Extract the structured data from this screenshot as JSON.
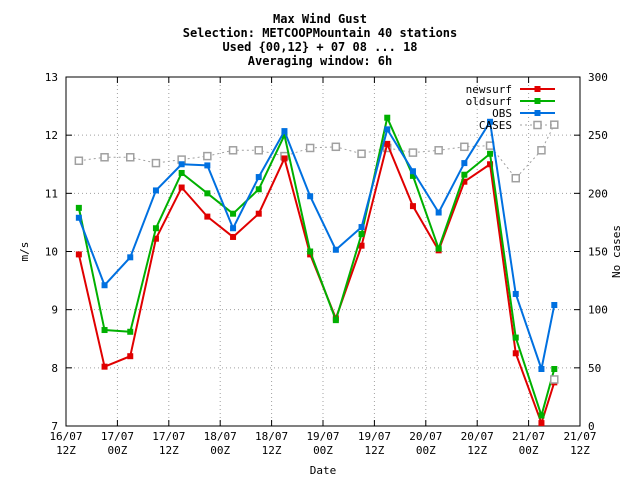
{
  "chart_data": {
    "type": "line",
    "title_lines": [
      "Max Wind Gust",
      "Selection: METCOOPMountain     40 stations",
      "Used {00,12} + 07 08 ... 18",
      "Averaging window:  6h"
    ],
    "xlabel": "Date",
    "ylabel": "m/s",
    "y2label": "No cases",
    "ylim": [
      7,
      13
    ],
    "y2lim": [
      0,
      300
    ],
    "yticks": [
      7,
      8,
      9,
      10,
      11,
      12,
      13
    ],
    "y2ticks": [
      0,
      50,
      100,
      150,
      200,
      250,
      300
    ],
    "xlim": [
      0,
      120
    ],
    "xticks": [
      {
        "x": 0,
        "label": [
          "16/07",
          "12Z"
        ]
      },
      {
        "x": 12,
        "label": [
          "17/07",
          "00Z"
        ]
      },
      {
        "x": 24,
        "label": [
          "17/07",
          "12Z"
        ]
      },
      {
        "x": 36,
        "label": [
          "18/07",
          "00Z"
        ]
      },
      {
        "x": 48,
        "label": [
          "18/07",
          "12Z"
        ]
      },
      {
        "x": 60,
        "label": [
          "19/07",
          "00Z"
        ]
      },
      {
        "x": 72,
        "label": [
          "19/07",
          "12Z"
        ]
      },
      {
        "x": 84,
        "label": [
          "20/07",
          "00Z"
        ]
      },
      {
        "x": 96,
        "label": [
          "20/07",
          "12Z"
        ]
      },
      {
        "x": 108,
        "label": [
          "21/07",
          "00Z"
        ]
      },
      {
        "x": 120,
        "label": [
          "21/07",
          "12Z"
        ]
      }
    ],
    "grid": true,
    "legend_position": "top-right",
    "x": [
      3,
      9,
      15,
      21,
      27,
      33,
      39,
      45,
      51,
      57,
      63,
      69,
      75,
      81,
      87,
      93,
      99,
      105,
      111,
      114
    ],
    "series": [
      {
        "name": "newsurf",
        "color": "#e00000",
        "axis": "left",
        "style": "solid",
        "values": [
          9.95,
          8.02,
          8.2,
          10.22,
          11.1,
          10.6,
          10.25,
          10.65,
          11.6,
          9.95,
          8.85,
          10.1,
          11.85,
          10.78,
          10.02,
          11.2,
          11.5,
          8.25,
          7.05,
          7.75
        ]
      },
      {
        "name": "oldsurf",
        "color": "#00b000",
        "axis": "left",
        "style": "solid",
        "values": [
          10.75,
          8.65,
          8.62,
          10.4,
          11.35,
          11.0,
          10.65,
          11.07,
          12.0,
          10.0,
          8.82,
          10.3,
          12.3,
          11.3,
          10.05,
          11.32,
          11.68,
          8.52,
          7.18,
          7.98
        ]
      },
      {
        "name": "OBS",
        "color": "#0070e0",
        "axis": "left",
        "style": "solid",
        "values": [
          10.58,
          9.42,
          9.9,
          11.05,
          11.5,
          11.48,
          10.4,
          11.28,
          12.07,
          10.95,
          10.03,
          10.42,
          12.1,
          11.38,
          10.67,
          11.52,
          12.23,
          9.27,
          7.98,
          9.08
        ]
      },
      {
        "name": "CASES",
        "color": "#a0a0a0",
        "axis": "right",
        "style": "dotted",
        "values": [
          228,
          231,
          231,
          226,
          229,
          232,
          237,
          237,
          232,
          239,
          240,
          234,
          239,
          235,
          237,
          240,
          241,
          213,
          237,
          259
        ]
      }
    ],
    "extra_marker": {
      "series": "CASES",
      "x": 114,
      "value": 40
    }
  }
}
